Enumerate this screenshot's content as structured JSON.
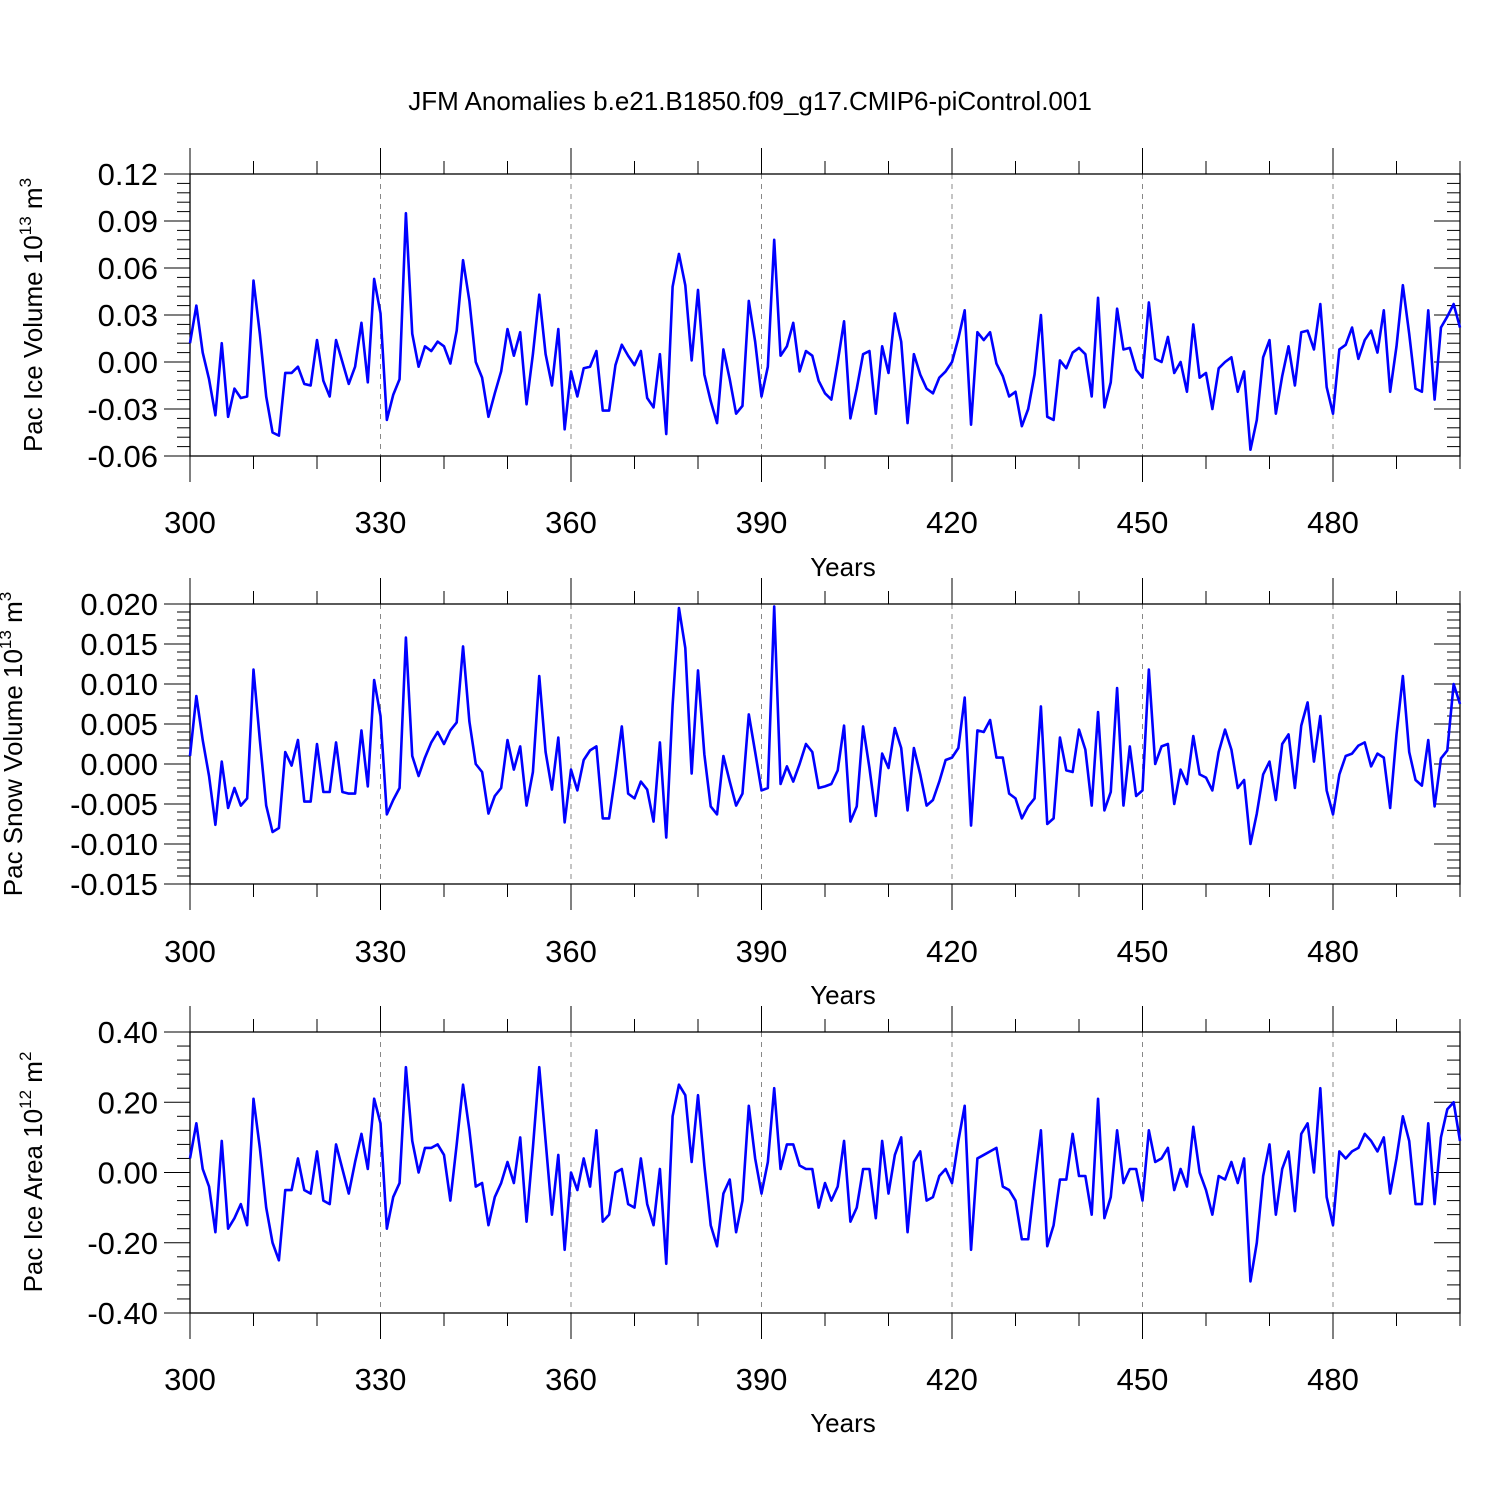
{
  "figure": {
    "title": "JFM Anomalies b.e21.B1850.f09_g17.CMIP6-piControl.001"
  },
  "colors": {
    "series": "#0000ff",
    "axis": "#000000",
    "grid": "#888888"
  },
  "chart_data": [
    {
      "type": "line",
      "ylabel": "Pac Ice Volume 10",
      "ylabel_exp": "13",
      "ylabel_unit": " m",
      "ylabel_unit_exp": "3",
      "xlabel": "Years",
      "xlim": [
        300,
        500
      ],
      "ylim": [
        -0.06,
        0.12
      ],
      "xticks": [
        300,
        330,
        360,
        390,
        420,
        450,
        480
      ],
      "xtick_labels": [
        "300",
        "330",
        "360",
        "390",
        "420",
        "450",
        "480"
      ],
      "yticks": [
        -0.06,
        -0.03,
        0.0,
        0.03,
        0.06,
        0.09,
        0.12
      ],
      "ytick_labels": [
        "-0.06",
        "-0.03",
        "0.00",
        "0.03",
        "0.06",
        "0.09",
        "0.12"
      ],
      "grid": "vertical dashed at major x ticks",
      "x_start": 300,
      "series": [
        {
          "values": [
            0.012,
            0.036,
            0.006,
            -0.011,
            -0.034,
            0.012,
            -0.035,
            -0.017,
            -0.023,
            -0.022,
            0.052,
            0.018,
            -0.022,
            -0.045,
            -0.047,
            -0.007,
            -0.007,
            -0.003,
            -0.014,
            -0.015,
            0.014,
            -0.012,
            -0.022,
            0.014,
            0.0,
            -0.014,
            -0.003,
            0.025,
            -0.013,
            0.053,
            0.031,
            -0.037,
            -0.021,
            -0.011,
            0.095,
            0.018,
            -0.003,
            0.01,
            0.007,
            0.013,
            0.01,
            -0.001,
            0.02,
            0.065,
            0.039,
            0.0,
            -0.01,
            -0.035,
            -0.02,
            -0.006,
            0.021,
            0.004,
            0.019,
            -0.027,
            0.005,
            0.043,
            0.005,
            -0.015,
            0.021,
            -0.043,
            -0.006,
            -0.022,
            -0.004,
            -0.003,
            0.007,
            -0.031,
            -0.031,
            -0.002,
            0.011,
            0.004,
            -0.002,
            0.007,
            -0.023,
            -0.029,
            0.005,
            -0.046,
            0.048,
            0.069,
            0.049,
            0.001,
            0.046,
            -0.008,
            -0.025,
            -0.039,
            0.008,
            -0.011,
            -0.033,
            -0.028,
            0.039,
            0.013,
            -0.022,
            -0.003,
            0.078,
            0.004,
            0.01,
            0.025,
            -0.006,
            0.007,
            0.004,
            -0.012,
            -0.02,
            -0.024,
            0.0,
            0.026,
            -0.036,
            -0.017,
            0.005,
            0.007,
            -0.033,
            0.01,
            -0.007,
            0.031,
            0.013,
            -0.039,
            0.005,
            -0.008,
            -0.017,
            -0.02,
            -0.01,
            -0.006,
            0.0,
            0.015,
            0.033,
            -0.04,
            0.019,
            0.014,
            0.019,
            -0.001,
            -0.009,
            -0.022,
            -0.019,
            -0.041,
            -0.03,
            -0.008,
            0.03,
            -0.035,
            -0.037,
            0.001,
            -0.004,
            0.006,
            0.009,
            0.005,
            -0.022,
            0.041,
            -0.029,
            -0.013,
            0.034,
            0.008,
            0.009,
            -0.005,
            -0.01,
            0.038,
            0.002,
            0.0,
            0.016,
            -0.007,
            0.0,
            -0.019,
            0.024,
            -0.01,
            -0.007,
            -0.03,
            -0.004,
            0.0,
            0.003,
            -0.019,
            -0.006,
            -0.056,
            -0.037,
            0.003,
            0.014,
            -0.033,
            -0.009,
            0.01,
            -0.015,
            0.019,
            0.02,
            0.008,
            0.037,
            -0.016,
            -0.033,
            0.008,
            0.011,
            0.022,
            0.002,
            0.014,
            0.02,
            0.006,
            0.033,
            -0.019,
            0.01,
            0.049,
            0.018,
            -0.017,
            -0.019,
            0.033,
            -0.024,
            0.022,
            0.029,
            0.037,
            0.022
          ]
        }
      ]
    },
    {
      "type": "line",
      "ylabel": "Pac Snow Volume 10",
      "ylabel_exp": "13",
      "ylabel_unit": " m",
      "ylabel_unit_exp": "3",
      "xlabel": "Years",
      "xlim": [
        300,
        500
      ],
      "ylim": [
        -0.015,
        0.02
      ],
      "xticks": [
        300,
        330,
        360,
        390,
        420,
        450,
        480
      ],
      "xtick_labels": [
        "300",
        "330",
        "360",
        "390",
        "420",
        "450",
        "480"
      ],
      "yticks": [
        -0.015,
        -0.01,
        -0.005,
        0.0,
        0.005,
        0.01,
        0.015,
        0.02
      ],
      "ytick_labels": [
        "-0.015",
        "-0.010",
        "-0.005",
        "0.000",
        "0.005",
        "0.010",
        "0.015",
        "0.020"
      ],
      "grid": "vertical dashed at major x ticks",
      "x_start": 300,
      "series": [
        {
          "values": [
            0.001,
            0.0085,
            0.003,
            -0.0015,
            -0.0076,
            0.0003,
            -0.0055,
            -0.003,
            -0.0052,
            -0.0043,
            0.0118,
            0.003,
            -0.0052,
            -0.0085,
            -0.008,
            0.0015,
            -0.0002,
            0.003,
            -0.0047,
            -0.0047,
            0.0025,
            -0.0035,
            -0.0035,
            0.0027,
            -0.0035,
            -0.0037,
            -0.0037,
            0.0042,
            -0.0028,
            0.0105,
            0.006,
            -0.0063,
            -0.0045,
            -0.003,
            0.0158,
            0.001,
            -0.0015,
            0.0008,
            0.0027,
            0.004,
            0.0025,
            0.0042,
            0.0052,
            0.0147,
            0.0053,
            0.0,
            -0.001,
            -0.0062,
            -0.004,
            -0.003,
            0.003,
            -0.0007,
            0.0022,
            -0.0052,
            -0.001,
            0.011,
            0.0015,
            -0.0032,
            0.0033,
            -0.0073,
            -0.0007,
            -0.0033,
            0.0005,
            0.0017,
            0.0022,
            -0.0068,
            -0.0068,
            -0.0013,
            0.0047,
            -0.0037,
            -0.0043,
            -0.0022,
            -0.0032,
            -0.0072,
            0.0027,
            -0.0092,
            0.0073,
            0.0195,
            0.0145,
            -0.0012,
            0.0117,
            0.0012,
            -0.0053,
            -0.0063,
            0.001,
            -0.0022,
            -0.0052,
            -0.0037,
            0.0062,
            0.0015,
            -0.0033,
            -0.003,
            0.0197,
            -0.0025,
            -0.0003,
            -0.0022,
            0.0,
            0.0025,
            0.0015,
            -0.003,
            -0.0028,
            -0.0025,
            -0.0008,
            0.0048,
            -0.0072,
            -0.0053,
            0.0047,
            -0.0005,
            -0.0065,
            0.0013,
            -0.0005,
            0.0045,
            0.002,
            -0.0058,
            0.002,
            -0.0013,
            -0.0052,
            -0.0045,
            -0.0022,
            0.0005,
            0.0008,
            0.002,
            0.0083,
            -0.0077,
            0.0042,
            0.004,
            0.0055,
            0.0008,
            0.0008,
            -0.0037,
            -0.0043,
            -0.0068,
            -0.0053,
            -0.0043,
            0.0072,
            -0.0075,
            -0.0068,
            0.0033,
            -0.0008,
            -0.001,
            0.0043,
            0.0018,
            -0.0052,
            0.0065,
            -0.0058,
            -0.0035,
            0.0095,
            -0.0052,
            0.0022,
            -0.004,
            -0.0033,
            0.0118,
            0.0,
            0.0022,
            0.0025,
            -0.005,
            -0.0007,
            -0.0025,
            0.0035,
            -0.0013,
            -0.0017,
            -0.0033,
            0.0015,
            0.0043,
            0.0018,
            -0.003,
            -0.002,
            -0.01,
            -0.0062,
            -0.0013,
            0.0003,
            -0.0045,
            0.0025,
            0.0037,
            -0.003,
            0.0048,
            0.0077,
            0.0003,
            0.006,
            -0.0033,
            -0.0063,
            -0.0013,
            0.001,
            0.0013,
            0.0023,
            0.0027,
            -0.0003,
            0.0013,
            0.0008,
            -0.0055,
            0.0037,
            0.011,
            0.0015,
            -0.002,
            -0.0027,
            0.003,
            -0.0053,
            0.0007,
            0.0017,
            0.01,
            0.0075
          ]
        }
      ]
    },
    {
      "type": "line",
      "ylabel": "Pac Ice Area 10",
      "ylabel_exp": "12",
      "ylabel_unit": " m",
      "ylabel_unit_exp": "2",
      "xlabel": "Years",
      "xlim": [
        300,
        500
      ],
      "ylim": [
        -0.4,
        0.4
      ],
      "xticks": [
        300,
        330,
        360,
        390,
        420,
        450,
        480
      ],
      "xtick_labels": [
        "300",
        "330",
        "360",
        "390",
        "420",
        "450",
        "480"
      ],
      "yticks": [
        -0.4,
        -0.2,
        0.0,
        0.2,
        0.4
      ],
      "ytick_labels": [
        "-0.40",
        "-0.20",
        "0.00",
        "0.20",
        "0.40"
      ],
      "grid": "vertical dashed at major x ticks",
      "x_start": 300,
      "series": [
        {
          "values": [
            0.04,
            0.14,
            0.01,
            -0.04,
            -0.17,
            0.09,
            -0.16,
            -0.13,
            -0.09,
            -0.15,
            0.21,
            0.07,
            -0.1,
            -0.2,
            -0.25,
            -0.05,
            -0.05,
            0.04,
            -0.05,
            -0.06,
            0.06,
            -0.08,
            -0.09,
            0.08,
            0.01,
            -0.06,
            0.03,
            0.11,
            0.01,
            0.21,
            0.14,
            -0.16,
            -0.07,
            -0.03,
            0.3,
            0.09,
            0.0,
            0.07,
            0.07,
            0.08,
            0.05,
            -0.08,
            0.08,
            0.25,
            0.12,
            -0.04,
            -0.03,
            -0.15,
            -0.07,
            -0.03,
            0.03,
            -0.03,
            0.1,
            -0.14,
            0.07,
            0.3,
            0.09,
            -0.12,
            0.05,
            -0.22,
            0.0,
            -0.05,
            0.04,
            -0.04,
            0.12,
            -0.14,
            -0.12,
            0.0,
            0.01,
            -0.09,
            -0.1,
            0.04,
            -0.09,
            -0.15,
            0.01,
            -0.26,
            0.16,
            0.25,
            0.22,
            0.03,
            0.22,
            0.02,
            -0.15,
            -0.21,
            -0.06,
            -0.02,
            -0.17,
            -0.08,
            0.19,
            0.04,
            -0.06,
            0.03,
            0.24,
            0.01,
            0.08,
            0.08,
            0.02,
            0.01,
            0.01,
            -0.1,
            -0.03,
            -0.08,
            -0.04,
            0.09,
            -0.14,
            -0.1,
            0.01,
            0.01,
            -0.13,
            0.09,
            -0.06,
            0.05,
            0.1,
            -0.17,
            0.03,
            0.06,
            -0.08,
            -0.07,
            -0.01,
            0.01,
            -0.03,
            0.09,
            0.19,
            -0.22,
            0.04,
            0.05,
            0.06,
            0.07,
            -0.04,
            -0.05,
            -0.08,
            -0.19,
            -0.19,
            -0.03,
            0.12,
            -0.21,
            -0.15,
            -0.02,
            -0.02,
            0.11,
            -0.01,
            -0.01,
            -0.12,
            0.21,
            -0.13,
            -0.07,
            0.12,
            -0.03,
            0.01,
            0.01,
            -0.08,
            0.12,
            0.03,
            0.04,
            0.07,
            -0.05,
            0.01,
            -0.04,
            0.13,
            0.0,
            -0.05,
            -0.12,
            -0.01,
            -0.02,
            0.03,
            -0.03,
            0.04,
            -0.31,
            -0.2,
            -0.01,
            0.08,
            -0.12,
            0.01,
            0.06,
            -0.11,
            0.11,
            0.14,
            0.0,
            0.24,
            -0.07,
            -0.15,
            0.06,
            0.04,
            0.06,
            0.07,
            0.11,
            0.09,
            0.06,
            0.1,
            -0.06,
            0.04,
            0.16,
            0.09,
            -0.09,
            -0.09,
            0.14,
            -0.09,
            0.1,
            0.18,
            0.2,
            0.09
          ]
        }
      ]
    }
  ]
}
